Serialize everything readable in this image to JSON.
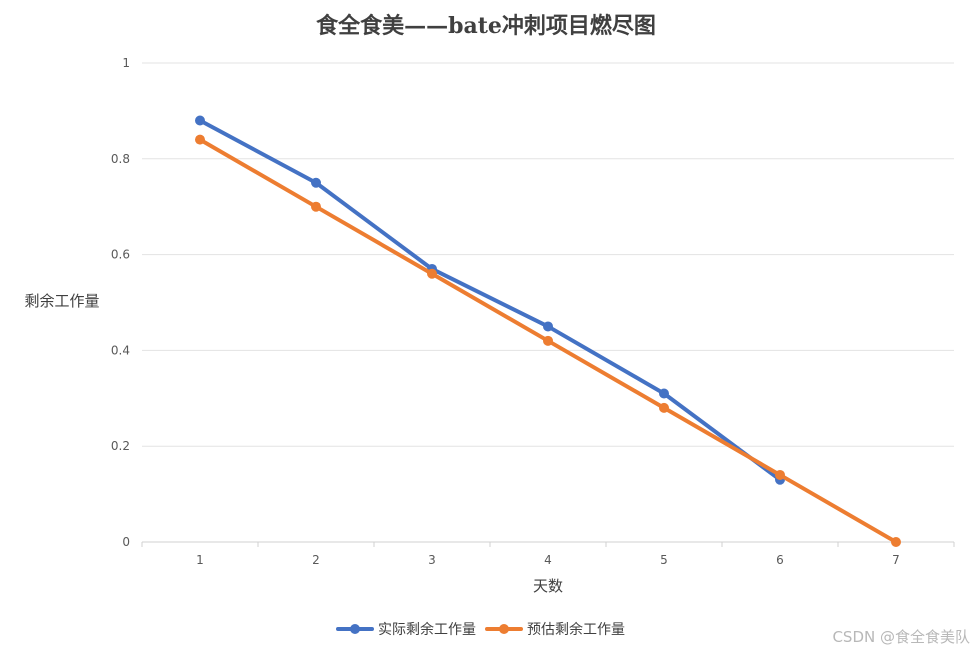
{
  "chart_data": {
    "type": "line",
    "title": "食全食美——bate冲刺项目燃尽图",
    "xlabel": "天数",
    "ylabel": "剩余工作量",
    "categories": [
      "1",
      "2",
      "3",
      "4",
      "5",
      "6",
      "7"
    ],
    "y_ticks": [
      "0",
      "0.2",
      "0.4",
      "0.6",
      "0.8",
      "1"
    ],
    "ylim": [
      0,
      1
    ],
    "grid": true,
    "legend_position": "bottom",
    "series": [
      {
        "name": "实际剩余工作量",
        "color": "#4472C4",
        "values": [
          0.88,
          0.75,
          0.57,
          0.45,
          0.31,
          0.13,
          null
        ]
      },
      {
        "name": "预估剩余工作量",
        "color": "#ED7D31",
        "values": [
          0.84,
          0.7,
          0.56,
          0.42,
          0.28,
          0.14,
          0.0
        ]
      }
    ]
  },
  "watermark": "CSDN @食全食美队"
}
